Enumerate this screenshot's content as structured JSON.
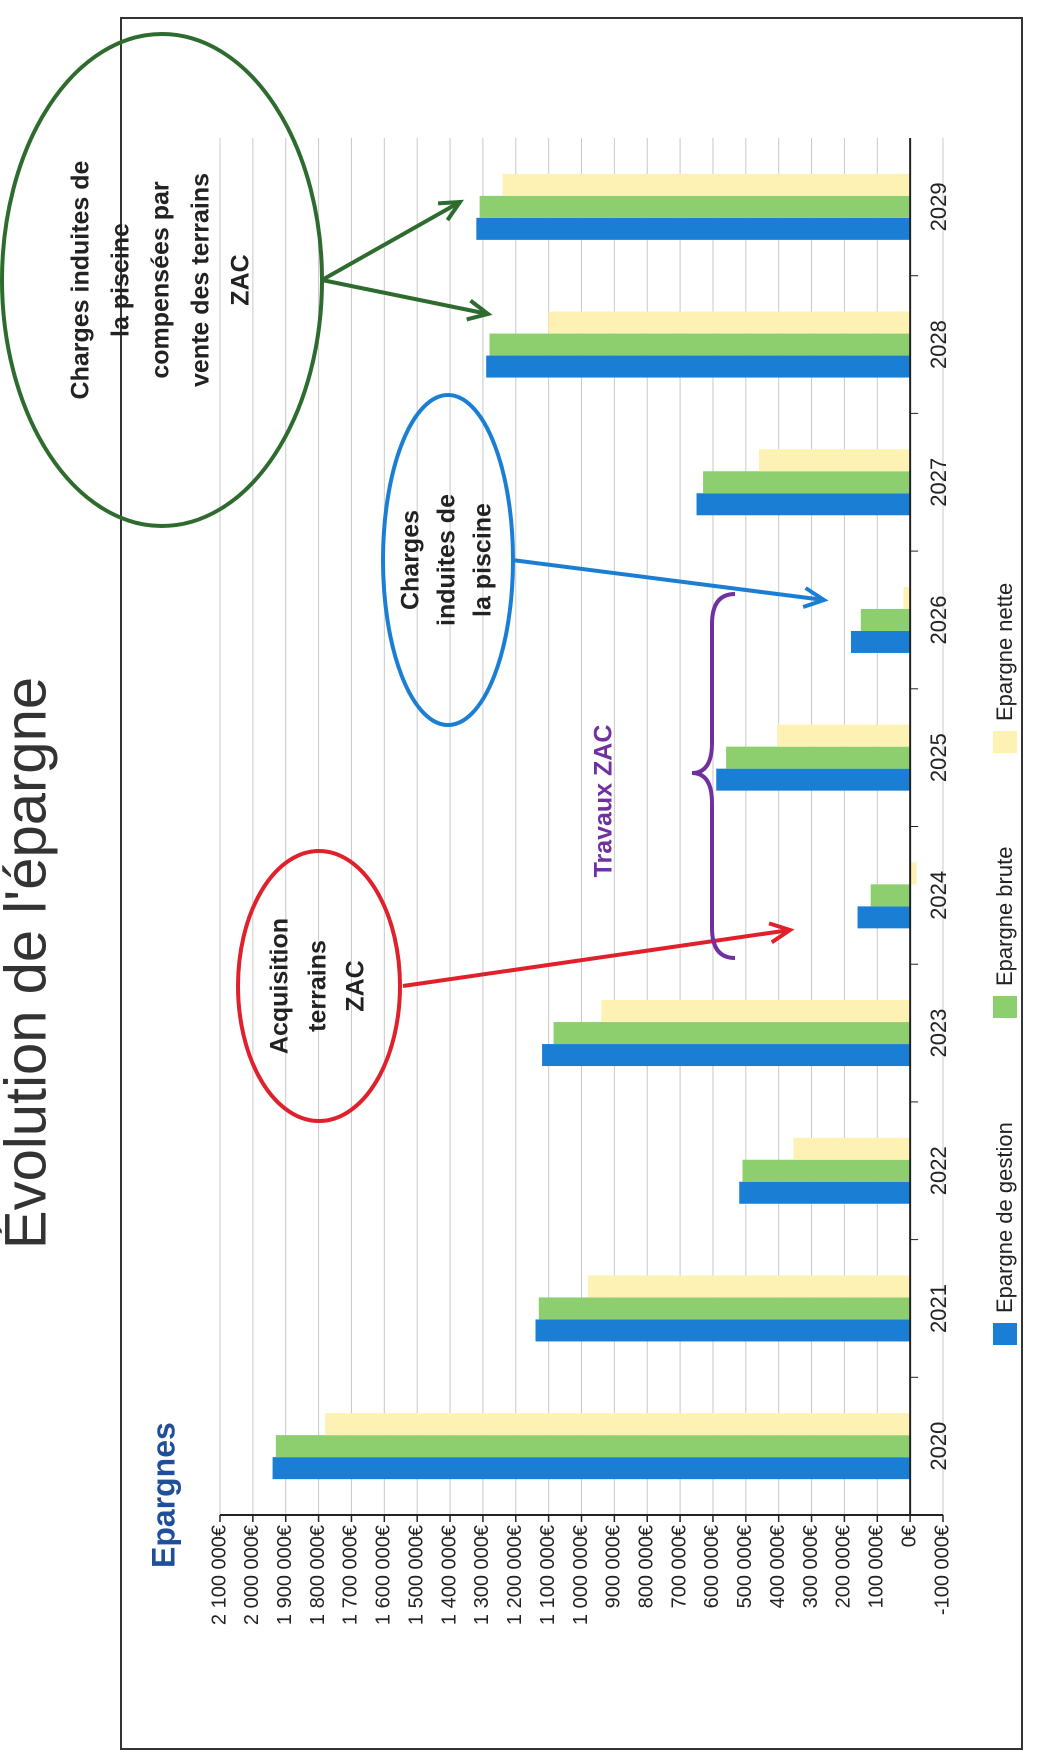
{
  "title": "Évolution de l'épargne",
  "chart_data": {
    "type": "bar",
    "title": "Epargnes",
    "categories": [
      "2020",
      "2021",
      "2022",
      "2023",
      "2024",
      "2025",
      "2026",
      "2027",
      "2028",
      "2029"
    ],
    "series": [
      {
        "name": "Epargne de gestion",
        "color": "#1a7fd4",
        "values": [
          1940000,
          1140000,
          520000,
          1120000,
          160000,
          590000,
          180000,
          650000,
          1290000,
          1320000
        ]
      },
      {
        "name": "Epargne brute",
        "color": "#8dce6e",
        "values": [
          1930000,
          1130000,
          510000,
          1085000,
          120000,
          560000,
          150000,
          630000,
          1280000,
          1310000
        ]
      },
      {
        "name": "Epargne nette",
        "color": "#fdf2b3",
        "values": [
          1780000,
          980000,
          355000,
          940000,
          -20000,
          405000,
          20000,
          460000,
          1100000,
          1240000
        ]
      }
    ],
    "ylim": [
      -100000,
      2100000
    ],
    "yticks": [
      {
        "value": -100000,
        "label": "-100 000€"
      },
      {
        "value": 0,
        "label": "0€"
      },
      {
        "value": 100000,
        "label": "100 000€"
      },
      {
        "value": 200000,
        "label": "200 000€"
      },
      {
        "value": 300000,
        "label": "300 000€"
      },
      {
        "value": 400000,
        "label": "400 000€"
      },
      {
        "value": 500000,
        "label": "500 000€"
      },
      {
        "value": 600000,
        "label": "600 000€"
      },
      {
        "value": 700000,
        "label": "700 000€"
      },
      {
        "value": 800000,
        "label": "800 000€"
      },
      {
        "value": 900000,
        "label": "900 000€"
      },
      {
        "value": 1000000,
        "label": "1 000 000€"
      },
      {
        "value": 1100000,
        "label": "1 100 000€"
      },
      {
        "value": 1200000,
        "label": "1 200 000€"
      },
      {
        "value": 1300000,
        "label": "1 300 000€"
      },
      {
        "value": 1400000,
        "label": "1 400 000€"
      },
      {
        "value": 1500000,
        "label": "1 500 000€"
      },
      {
        "value": 1600000,
        "label": "1 600 000€"
      },
      {
        "value": 1700000,
        "label": "1 700 000€"
      },
      {
        "value": 1800000,
        "label": "1 800 000€"
      },
      {
        "value": 1900000,
        "label": "1 900 000€"
      },
      {
        "value": 2000000,
        "label": "2 000 000€"
      },
      {
        "value": 2100000,
        "label": "2 100 000€"
      }
    ],
    "grid": true,
    "legend": "bottom",
    "annotations": [
      {
        "lines": [
          "Acquisition",
          "terrains",
          "ZAC"
        ],
        "color": "#e0202a"
      },
      {
        "lines": [
          "Travaux ZAC"
        ],
        "color": "#7030a0"
      },
      {
        "lines": [
          "Charges",
          "induites de",
          "la piscine"
        ],
        "color": "#1a7fd4"
      },
      {
        "lines": [
          "Charges induites de",
          "la piscine",
          "compensées par",
          "vente des terrains",
          "ZAC"
        ],
        "color": "#2e6b2e"
      }
    ]
  }
}
